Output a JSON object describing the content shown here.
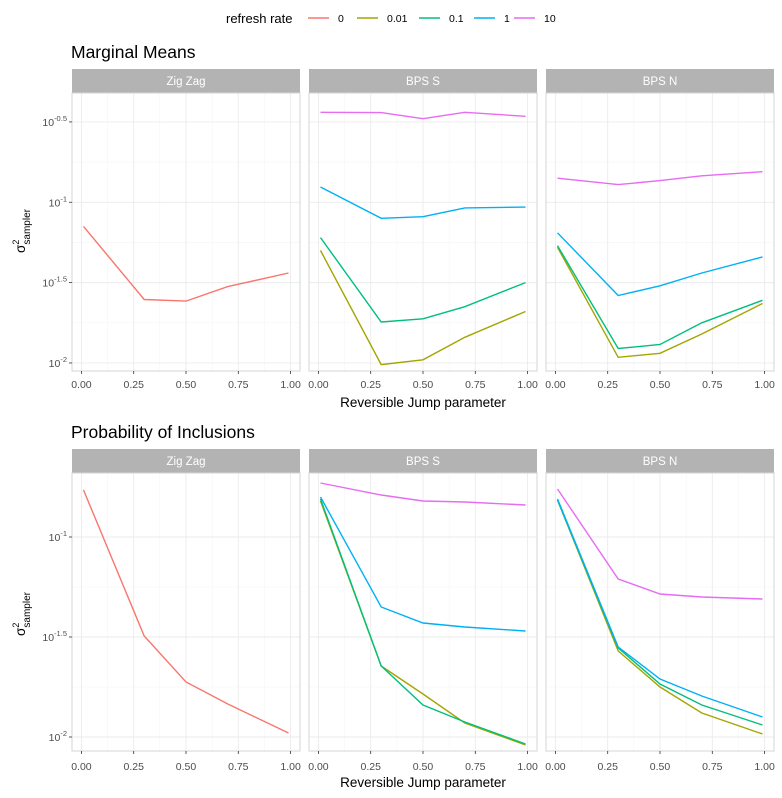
{
  "legend": {
    "title": "refresh rate",
    "entries": [
      {
        "label": "0",
        "color": "#F8766D"
      },
      {
        "label": "0.01",
        "color": "#A3A500"
      },
      {
        "label": "0.1",
        "color": "#00BF7D"
      },
      {
        "label": "1",
        "color": "#00B0F6"
      },
      {
        "label": "10",
        "color": "#E76BF3"
      }
    ]
  },
  "chart_data": [
    {
      "type": "line",
      "title": "Marginal Means",
      "xlabel": "Reversible Jump parameter",
      "ylabel_main": "σ",
      "ylabel_sup": "2",
      "ylabel_sub": "sampler",
      "y_scale": "log10",
      "ylim_log10": [
        -2.05,
        -0.32
      ],
      "xlim": [
        0,
        1
      ],
      "x_ticks": [
        {
          "value": 0,
          "label": "0.00"
        },
        {
          "value": 0.25,
          "label": "0.25"
        },
        {
          "value": 0.5,
          "label": "0.50"
        },
        {
          "value": 0.75,
          "label": "0.75"
        },
        {
          "value": 1,
          "label": "1.00"
        }
      ],
      "y_ticks": [
        {
          "value": -0.5,
          "base": "10",
          "exp": "-0.5"
        },
        {
          "value": -1,
          "base": "10",
          "exp": "-1"
        },
        {
          "value": -1.5,
          "base": "10",
          "exp": "-1.5"
        },
        {
          "value": -2,
          "base": "10",
          "exp": "-2"
        }
      ],
      "x": [
        0.01,
        0.3,
        0.5,
        0.7,
        0.99
      ],
      "panels": [
        {
          "strip": "Zig Zag",
          "series": [
            {
              "name": "0",
              "values": [
                -1.15,
                -1.605,
                -1.615,
                -1.525,
                -1.44
              ]
            }
          ]
        },
        {
          "strip": "BPS S",
          "series": [
            {
              "name": "0.01",
              "values": [
                -1.3,
                -2.01,
                -1.98,
                -1.84,
                -1.68
              ]
            },
            {
              "name": "0.1",
              "values": [
                -1.22,
                -1.745,
                -1.725,
                -1.65,
                -1.5
              ]
            },
            {
              "name": "1",
              "values": [
                -0.905,
                -1.1,
                -1.09,
                -1.035,
                -1.03
              ]
            },
            {
              "name": "10",
              "values": [
                -0.44,
                -0.442,
                -0.48,
                -0.44,
                -0.465
              ]
            }
          ]
        },
        {
          "strip": "BPS N",
          "series": [
            {
              "name": "0.01",
              "values": [
                -1.28,
                -1.965,
                -1.94,
                -1.82,
                -1.63
              ]
            },
            {
              "name": "0.1",
              "values": [
                -1.27,
                -1.91,
                -1.885,
                -1.75,
                -1.61
              ]
            },
            {
              "name": "1",
              "values": [
                -1.19,
                -1.58,
                -1.52,
                -1.44,
                -1.34
              ]
            },
            {
              "name": "10",
              "values": [
                -0.85,
                -0.89,
                -0.865,
                -0.835,
                -0.81
              ]
            }
          ]
        }
      ]
    },
    {
      "type": "line",
      "title": "Probability of Inclusions",
      "xlabel": "Reversible Jump parameter",
      "ylabel_main": "σ",
      "ylabel_sup": "2",
      "ylabel_sub": "sampler",
      "y_scale": "log10",
      "ylim_log10": [
        -2.07,
        -0.68
      ],
      "xlim": [
        0,
        1
      ],
      "x_ticks": [
        {
          "value": 0,
          "label": "0.00"
        },
        {
          "value": 0.25,
          "label": "0.25"
        },
        {
          "value": 0.5,
          "label": "0.50"
        },
        {
          "value": 0.75,
          "label": "0.75"
        },
        {
          "value": 1,
          "label": "1.00"
        }
      ],
      "y_ticks": [
        {
          "value": -1,
          "base": "10",
          "exp": "-1"
        },
        {
          "value": -1.5,
          "base": "10",
          "exp": "-1.5"
        },
        {
          "value": -2,
          "base": "10",
          "exp": "-2"
        }
      ],
      "x": [
        0.01,
        0.3,
        0.5,
        0.7,
        0.99
      ],
      "panels": [
        {
          "strip": "Zig Zag",
          "series": [
            {
              "name": "0",
              "values": [
                -0.765,
                -1.495,
                -1.725,
                -1.835,
                -1.98
              ]
            }
          ]
        },
        {
          "strip": "BPS S",
          "series": [
            {
              "name": "0.01",
              "values": [
                -0.82,
                -1.645,
                -1.785,
                -1.93,
                -2.04
              ]
            },
            {
              "name": "0.1",
              "values": [
                -0.81,
                -1.645,
                -1.84,
                -1.925,
                -2.035
              ]
            },
            {
              "name": "1",
              "values": [
                -0.8,
                -1.35,
                -1.43,
                -1.45,
                -1.47
              ]
            },
            {
              "name": "10",
              "values": [
                -0.73,
                -0.79,
                -0.82,
                -0.825,
                -0.84
              ]
            }
          ]
        },
        {
          "strip": "BPS N",
          "series": [
            {
              "name": "0.01",
              "values": [
                -0.815,
                -1.57,
                -1.75,
                -1.88,
                -1.985
              ]
            },
            {
              "name": "0.1",
              "values": [
                -0.815,
                -1.555,
                -1.735,
                -1.84,
                -1.94
              ]
            },
            {
              "name": "1",
              "values": [
                -0.81,
                -1.55,
                -1.71,
                -1.795,
                -1.9
              ]
            },
            {
              "name": "10",
              "values": [
                -0.76,
                -1.21,
                -1.285,
                -1.3,
                -1.31
              ]
            }
          ]
        }
      ]
    }
  ]
}
